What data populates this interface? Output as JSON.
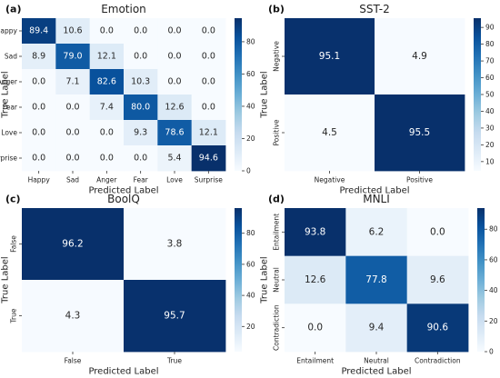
{
  "chart_data": [
    {
      "panel_label": "(a)",
      "type": "heatmap",
      "title": "Emotion",
      "xlabel": "Predicted Label",
      "ylabel": "True Label",
      "x_categories": [
        "Happy",
        "Sad",
        "Anger",
        "Fear",
        "Love",
        "Surprise"
      ],
      "y_categories": [
        "Happy",
        "Sad",
        "Anger",
        "Fear",
        "Love",
        "Surprise"
      ],
      "values": [
        [
          89.4,
          10.6,
          0.0,
          0.0,
          0.0,
          0.0
        ],
        [
          8.9,
          79.0,
          12.1,
          0.0,
          0.0,
          0.0
        ],
        [
          0.0,
          7.1,
          82.6,
          10.3,
          0.0,
          0.0
        ],
        [
          0.0,
          0.0,
          7.4,
          80.0,
          12.6,
          0.0
        ],
        [
          0.0,
          0.0,
          0.0,
          9.3,
          78.6,
          12.1
        ],
        [
          0.0,
          0.0,
          0.0,
          0.0,
          5.4,
          94.6
        ]
      ],
      "colorbar_ticks": [
        0,
        20,
        40,
        60,
        80
      ],
      "vmin": 0,
      "vmax": 94.6,
      "y_tick_rotation": "horizontal",
      "colormap": "Blues"
    },
    {
      "panel_label": "(b)",
      "type": "heatmap",
      "title": "SST-2",
      "xlabel": "Predicted Label",
      "ylabel": "True Label",
      "x_categories": [
        "Negative",
        "Positive"
      ],
      "y_categories": [
        "Negative",
        "Positive"
      ],
      "values": [
        [
          95.1,
          4.9
        ],
        [
          4.5,
          95.5
        ]
      ],
      "colorbar_ticks": [
        10,
        20,
        30,
        40,
        50,
        60,
        70,
        80,
        90
      ],
      "vmin": 4.5,
      "vmax": 95.5,
      "y_tick_rotation": "vertical",
      "colormap": "Blues"
    },
    {
      "panel_label": "(c)",
      "type": "heatmap",
      "title": "BoolQ",
      "xlabel": "Predicted Label",
      "ylabel": "True Label",
      "x_categories": [
        "False",
        "True"
      ],
      "y_categories": [
        "False",
        "True"
      ],
      "values": [
        [
          96.2,
          3.8
        ],
        [
          4.3,
          95.7
        ]
      ],
      "colorbar_ticks": [
        20,
        40,
        60,
        80
      ],
      "vmin": 3.8,
      "vmax": 96.2,
      "y_tick_rotation": "vertical",
      "colormap": "Blues"
    },
    {
      "panel_label": "(d)",
      "type": "heatmap",
      "title": "MNLI",
      "xlabel": "Predicted Label",
      "ylabel": "True Label",
      "x_categories": [
        "Entailment",
        "Neutral",
        "Contradiction"
      ],
      "y_categories": [
        "Entailment",
        "Neutral",
        "Contradiction"
      ],
      "values": [
        [
          93.8,
          6.2,
          0.0
        ],
        [
          12.6,
          77.8,
          9.6
        ],
        [
          0.0,
          9.4,
          90.6
        ]
      ],
      "colorbar_ticks": [
        0,
        20,
        40,
        60,
        80
      ],
      "vmin": 0,
      "vmax": 93.8,
      "y_tick_rotation": "vertical",
      "colormap": "Blues"
    }
  ]
}
